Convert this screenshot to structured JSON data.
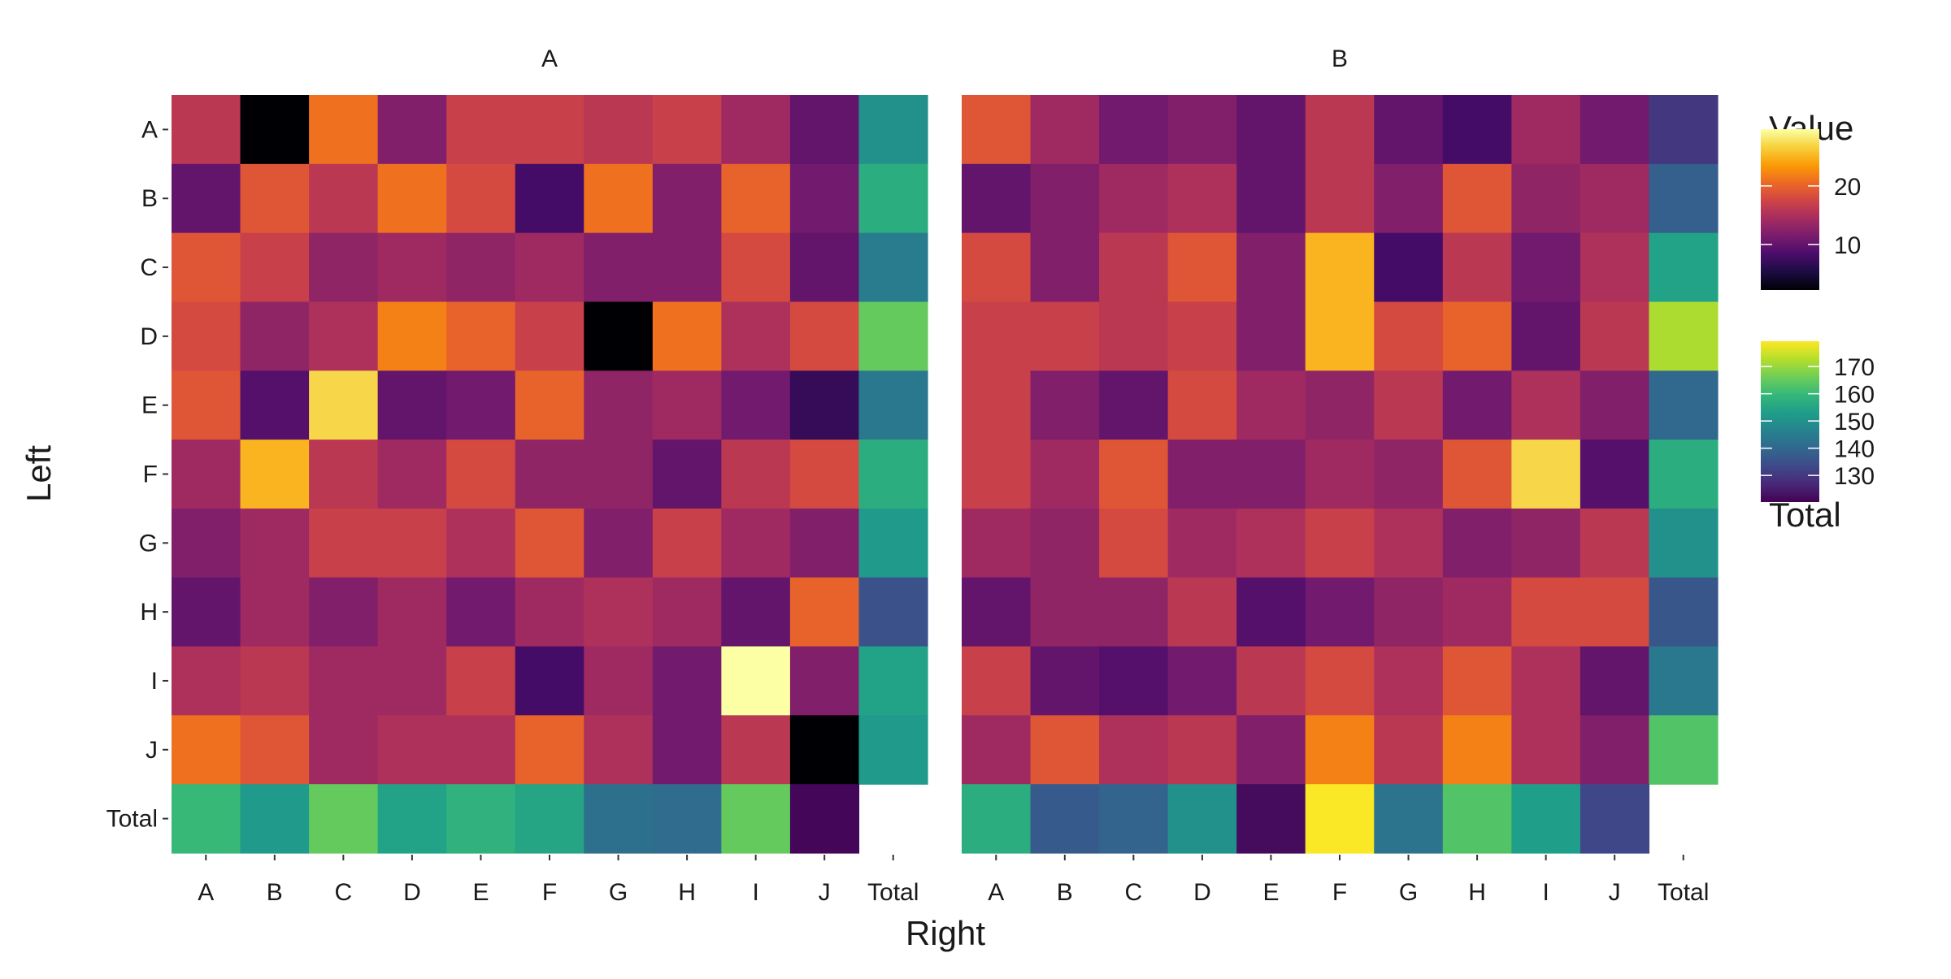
{
  "chart_data": {
    "type": "heatmap",
    "xlabel": "Right",
    "ylabel": "Left",
    "row_labels": [
      "A",
      "B",
      "C",
      "D",
      "E",
      "F",
      "G",
      "H",
      "I",
      "J",
      "Total"
    ],
    "col_labels": [
      "A",
      "B",
      "C",
      "D",
      "E",
      "F",
      "G",
      "H",
      "I",
      "J",
      "Total"
    ],
    "legend_value": {
      "title": "Value",
      "ticks": [
        10,
        20
      ],
      "range": [
        2.2,
        29.7
      ],
      "colormap": "inferno",
      "placement": "right"
    },
    "legend_total": {
      "title": "Total",
      "ticks": [
        130,
        140,
        150,
        160,
        170
      ],
      "range": [
        120.2,
        179.3
      ],
      "colormap": "viridis",
      "placement": "right"
    },
    "panels": [
      {
        "title": "A",
        "values": [
          [
            16,
            2.2,
            21,
            12,
            17,
            17,
            16,
            17,
            14,
            10
          ],
          [
            10,
            19,
            16,
            21,
            18,
            8,
            21,
            12,
            20,
            11
          ],
          [
            19,
            17,
            13,
            14,
            13,
            14,
            12,
            12,
            18,
            10
          ],
          [
            18,
            13,
            15,
            22,
            20,
            17,
            2.2,
            21,
            15,
            18
          ],
          [
            19,
            9,
            27,
            10,
            11,
            20,
            13,
            14,
            11,
            7
          ],
          [
            14,
            25,
            16,
            14,
            18,
            13,
            13,
            10,
            16,
            18
          ],
          [
            12,
            14,
            17,
            17,
            15,
            19,
            12,
            17,
            14,
            12
          ],
          [
            10,
            14,
            12,
            14,
            11,
            14,
            15,
            14,
            10,
            20
          ],
          [
            15,
            16,
            14,
            14,
            17,
            8,
            14,
            11,
            29.7,
            12
          ],
          [
            21,
            19,
            14,
            15,
            15,
            20,
            15,
            11,
            16,
            2.2
          ]
        ],
        "row_totals": [
          150,
          157,
          145,
          165,
          144,
          157,
          152,
          135,
          154,
          152
        ],
        "col_totals": [
          160,
          152,
          165,
          154,
          158,
          155,
          142,
          141,
          165,
          121
        ]
      },
      {
        "title": "B",
        "values": [
          [
            19,
            14,
            11,
            12,
            10,
            16,
            10,
            8,
            14,
            11
          ],
          [
            10,
            12,
            14,
            15,
            10,
            16,
            12,
            19,
            13,
            14
          ],
          [
            18,
            12,
            16,
            19,
            12,
            25,
            8,
            16,
            11,
            15
          ],
          [
            17,
            17,
            16,
            17,
            12,
            25,
            18,
            20,
            10,
            16
          ],
          [
            17,
            12,
            10,
            18,
            14,
            13,
            16,
            11,
            15,
            12
          ],
          [
            17,
            14,
            19,
            12,
            12,
            14,
            13,
            19,
            27,
            9
          ],
          [
            14,
            13,
            18,
            14,
            15,
            17,
            15,
            12,
            13,
            16
          ],
          [
            10,
            13,
            13,
            16,
            9,
            11,
            13,
            14,
            18,
            18
          ],
          [
            17,
            10,
            9,
            11,
            16,
            18,
            15,
            19,
            15,
            10
          ],
          [
            14,
            19,
            15,
            16,
            12,
            22,
            16,
            22,
            15,
            12
          ]
        ],
        "row_totals": [
          130,
          138,
          154,
          172,
          140,
          157,
          150,
          136,
          144,
          163
        ],
        "col_totals": [
          157,
          137,
          139,
          150,
          122,
          179,
          143,
          163,
          153,
          133
        ]
      }
    ]
  }
}
